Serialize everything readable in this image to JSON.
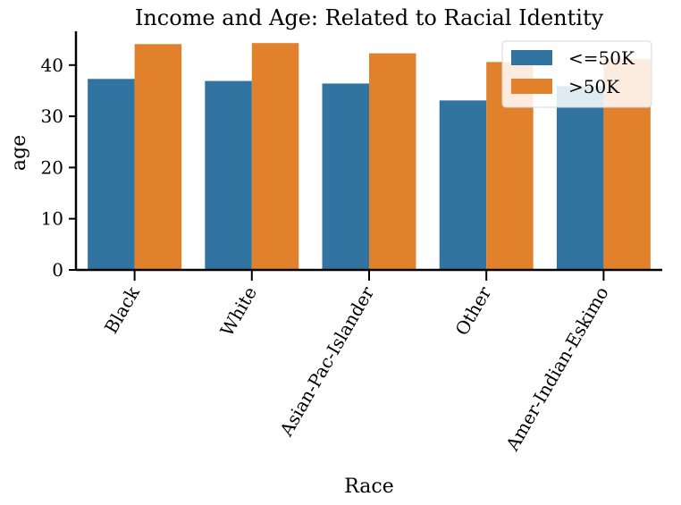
{
  "chart_data": {
    "type": "bar",
    "title": "Income and Age:  Related to Racial Identity",
    "xlabel": "Race",
    "ylabel": "age",
    "categories": [
      "Black",
      "White",
      "Asian-Pac-Islander",
      "Other",
      "Amer-Indian-Eskimo"
    ],
    "series": [
      {
        "name": "<=50K",
        "color": "#3274a1",
        "values": [
          37.3,
          36.9,
          36.4,
          33.1,
          35.9
        ]
      },
      {
        "name": ">50K",
        "color": "#e1812c",
        "values": [
          44.1,
          44.3,
          42.3,
          40.6,
          41.2
        ]
      }
    ],
    "ylim": [
      0,
      46.6
    ],
    "yticks": [
      0,
      10,
      20,
      30,
      40
    ],
    "grid": false,
    "legend_position": "top-right"
  }
}
